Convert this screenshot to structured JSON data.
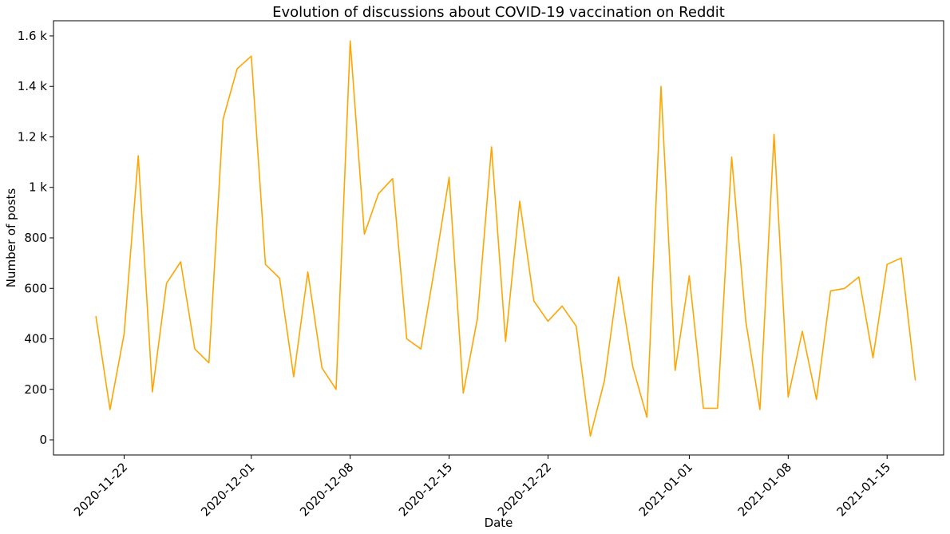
{
  "chart_data": {
    "type": "line",
    "title": "Evolution of discussions about COVID-19 vaccination on Reddit",
    "xlabel": "Date",
    "ylabel": "Number of posts",
    "color": "#ffa500",
    "grid": false,
    "legend": "none",
    "xlim": [
      "2020-11-17",
      "2021-01-19"
    ],
    "ylim": [
      -60,
      1660
    ],
    "x_ticks": [
      "2020-11-22",
      "2020-12-01",
      "2020-12-08",
      "2020-12-15",
      "2020-12-22",
      "2021-01-01",
      "2021-01-08",
      "2021-01-15"
    ],
    "y_ticks": [
      0,
      200,
      400,
      600,
      800,
      1000,
      1200,
      1400,
      1600
    ],
    "y_tick_labels": [
      "0",
      "200",
      "400",
      "600",
      "800",
      "1 k",
      "1.2 k",
      "1.4 k",
      "1.6 k"
    ],
    "series": [
      {
        "x": [
          "2020-11-20",
          "2020-11-21",
          "2020-11-22",
          "2020-11-23",
          "2020-11-24",
          "2020-11-25",
          "2020-11-26",
          "2020-11-27",
          "2020-11-28",
          "2020-11-29",
          "2020-11-30",
          "2020-12-01",
          "2020-12-02",
          "2020-12-03",
          "2020-12-04",
          "2020-12-05",
          "2020-12-06",
          "2020-12-07",
          "2020-12-08",
          "2020-12-09",
          "2020-12-10",
          "2020-12-11",
          "2020-12-12",
          "2020-12-13",
          "2020-12-14",
          "2020-12-15",
          "2020-12-16",
          "2020-12-17",
          "2020-12-18",
          "2020-12-19",
          "2020-12-20",
          "2020-12-21",
          "2020-12-22",
          "2020-12-23",
          "2020-12-24",
          "2020-12-25",
          "2020-12-26",
          "2020-12-27",
          "2020-12-28",
          "2020-12-29",
          "2020-12-30",
          "2020-12-31",
          "2021-01-01",
          "2021-01-02",
          "2021-01-03",
          "2021-01-04",
          "2021-01-05",
          "2021-01-06",
          "2021-01-07",
          "2021-01-08",
          "2021-01-09",
          "2021-01-10",
          "2021-01-11",
          "2021-01-12",
          "2021-01-13",
          "2021-01-14",
          "2021-01-15",
          "2021-01-16",
          "2021-01-17"
        ],
        "y": [
          490,
          120,
          420,
          1125,
          190,
          620,
          705,
          360,
          305,
          1270,
          1470,
          1520,
          695,
          640,
          250,
          665,
          285,
          200,
          1580,
          815,
          975,
          1035,
          400,
          360,
          690,
          1040,
          185,
          480,
          1160,
          390,
          945,
          550,
          470,
          530,
          450,
          15,
          235,
          645,
          290,
          90,
          1400,
          275,
          650,
          125,
          125,
          1120,
          470,
          120,
          1210,
          170,
          430,
          160,
          590,
          600,
          645,
          325,
          695,
          720,
          235
        ]
      }
    ]
  }
}
